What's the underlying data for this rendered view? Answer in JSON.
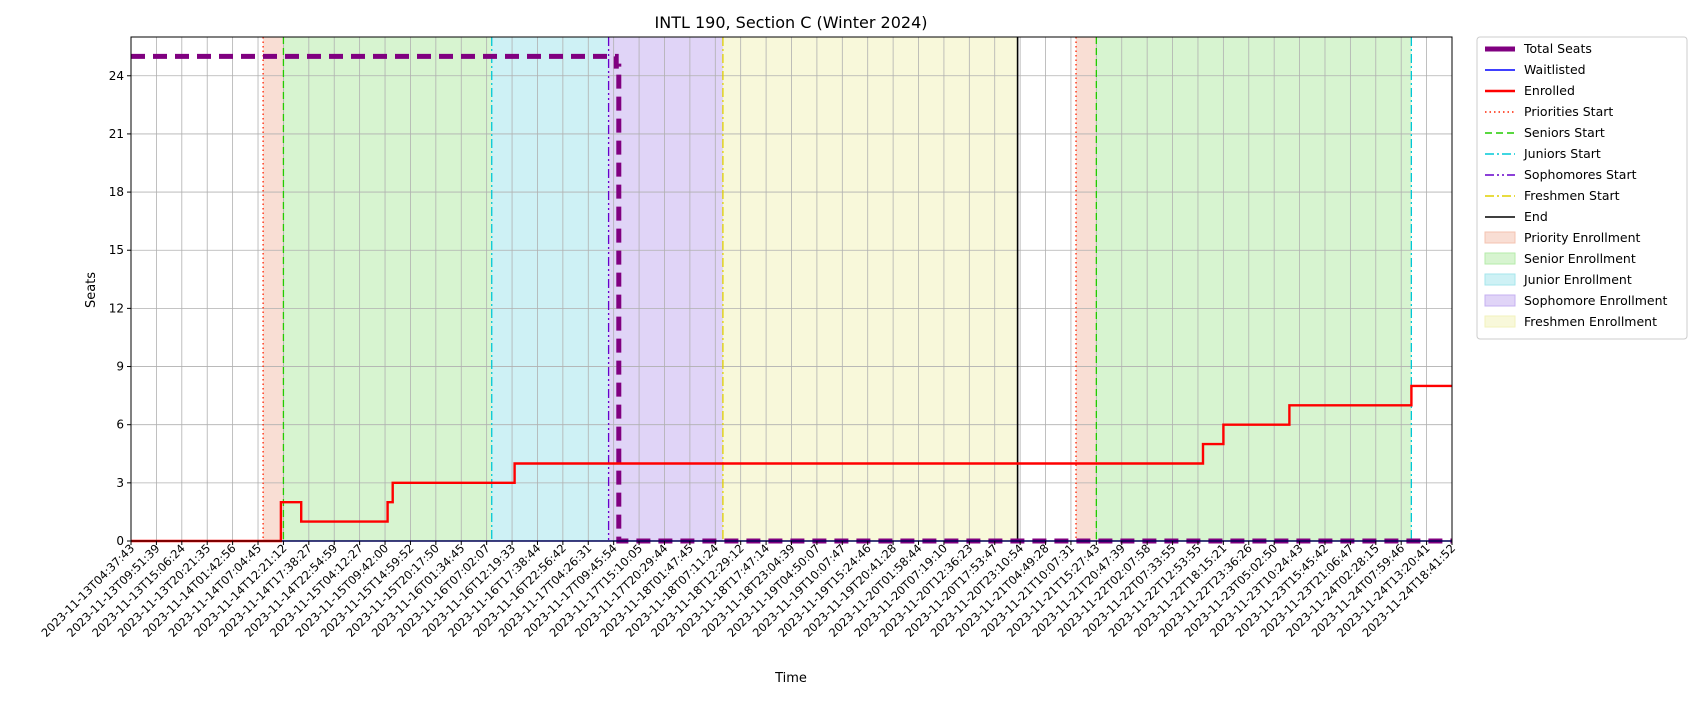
{
  "chart_data": {
    "type": "line",
    "title": "INTL 190, Section C (Winter 2024)",
    "xlabel": "Time",
    "ylabel": "Seats",
    "ylim": [
      0,
      26
    ],
    "yticks": [
      0,
      3,
      6,
      9,
      12,
      15,
      18,
      21,
      24
    ],
    "grid": true,
    "legend_position": "outside-right",
    "x_tick_labels": [
      "2023-11-13T04:37:43",
      "2023-11-13T09:51:39",
      "2023-11-13T15:06:24",
      "2023-11-13T20:21:35",
      "2023-11-14T01:42:56",
      "2023-11-14T07:04:45",
      "2023-11-14T12:21:12",
      "2023-11-14T17:38:27",
      "2023-11-14T22:54:59",
      "2023-11-15T04:12:27",
      "2023-11-15T09:42:00",
      "2023-11-15T14:59:52",
      "2023-11-15T20:17:50",
      "2023-11-16T01:34:45",
      "2023-11-16T07:02:07",
      "2023-11-16T12:19:33",
      "2023-11-16T17:38:44",
      "2023-11-16T22:56:42",
      "2023-11-17T04:26:31",
      "2023-11-17T09:45:54",
      "2023-11-17T15:10:05",
      "2023-11-17T20:29:44",
      "2023-11-18T01:47:45",
      "2023-11-18T07:11:24",
      "2023-11-18T12:29:12",
      "2023-11-18T17:47:14",
      "2023-11-18T23:04:39",
      "2023-11-19T04:50:07",
      "2023-11-19T10:07:47",
      "2023-11-19T15:24:46",
      "2023-11-19T20:41:28",
      "2023-11-20T01:58:44",
      "2023-11-20T07:19:10",
      "2023-11-20T12:36:23",
      "2023-11-20T17:53:47",
      "2023-11-20T23:10:54",
      "2023-11-21T04:49:28",
      "2023-11-21T10:07:31",
      "2023-11-21T15:27:43",
      "2023-11-21T20:47:39",
      "2023-11-22T02:07:58",
      "2023-11-22T07:33:55",
      "2023-11-22T12:53:55",
      "2023-11-22T18:15:21",
      "2023-11-22T23:36:26",
      "2023-11-23T05:02:50",
      "2023-11-23T10:24:43",
      "2023-11-23T15:45:42",
      "2023-11-23T21:06:47",
      "2023-11-24T02:28:15",
      "2023-11-24T07:59:46",
      "2023-11-24T13:20:41",
      "2023-11-24T18:41:52"
    ],
    "series": [
      {
        "name": "Total Seats",
        "color": "#800080",
        "style": "dashed-thick",
        "points": [
          [
            0,
            25
          ],
          [
            19.1,
            25
          ],
          [
            19.1,
            24.5
          ],
          [
            19.2,
            24.5
          ],
          [
            19.2,
            0
          ],
          [
            52,
            0
          ]
        ]
      },
      {
        "name": "Waitlisted",
        "color": "#0000ff",
        "style": "solid",
        "points": [
          [
            0,
            0
          ],
          [
            52,
            0
          ]
        ]
      },
      {
        "name": "Enrolled",
        "color": "#ff0000",
        "style": "solid",
        "points": [
          [
            0,
            0
          ],
          [
            5.9,
            0
          ],
          [
            5.9,
            2
          ],
          [
            6.7,
            2
          ],
          [
            6.7,
            1
          ],
          [
            10.1,
            1
          ],
          [
            10.1,
            2
          ],
          [
            10.3,
            2
          ],
          [
            10.3,
            3
          ],
          [
            15.1,
            3
          ],
          [
            15.1,
            4
          ],
          [
            42.2,
            4
          ],
          [
            42.2,
            5
          ],
          [
            43.0,
            5
          ],
          [
            43.0,
            6
          ],
          [
            45.6,
            6
          ],
          [
            45.6,
            7
          ],
          [
            50.4,
            7
          ],
          [
            50.4,
            8
          ],
          [
            52,
            8
          ]
        ]
      }
    ],
    "vertical_lines": [
      {
        "name": "Priorities Start",
        "color": "#ff2200",
        "style": "dotted",
        "x": [
          5.2,
          37.2
        ]
      },
      {
        "name": "Seniors Start",
        "color": "#22cc00",
        "style": "dashed",
        "x": [
          6.0,
          38.0
        ]
      },
      {
        "name": "Juniors Start",
        "color": "#00c8d7",
        "style": "dashdot",
        "x": [
          14.2,
          50.4
        ]
      },
      {
        "name": "Sophomores Start",
        "color": "#6600cc",
        "style": "dashdotdot",
        "x": [
          18.8
        ]
      },
      {
        "name": "Freshmen Start",
        "color": "#e0d000",
        "style": "dashdot",
        "x": [
          23.3
        ]
      },
      {
        "name": "End",
        "color": "#000000",
        "style": "solid",
        "x": [
          34.9
        ]
      }
    ],
    "shaded_regions": [
      {
        "name": "Priority Enrollment",
        "color": "#f4c3b0",
        "ranges": [
          [
            5.2,
            6.0
          ],
          [
            37.2,
            38.0
          ]
        ]
      },
      {
        "name": "Senior Enrollment",
        "color": "#b6ebaa",
        "ranges": [
          [
            6.0,
            14.2
          ],
          [
            38.0,
            50.4
          ]
        ]
      },
      {
        "name": "Junior Enrollment",
        "color": "#a6e6ec",
        "ranges": [
          [
            14.2,
            18.8
          ]
        ]
      },
      {
        "name": "Sophomore Enrollment",
        "color": "#c6b0f0",
        "ranges": [
          [
            18.8,
            23.3
          ]
        ]
      },
      {
        "name": "Freshmen Enrollment",
        "color": "#f2f2bc",
        "ranges": [
          [
            23.3,
            34.9
          ]
        ]
      }
    ],
    "legend": [
      {
        "label": "Total Seats",
        "kind": "line",
        "color": "#800080",
        "style": "thick"
      },
      {
        "label": "Waitlisted",
        "kind": "line",
        "color": "#0000ff",
        "style": "solid"
      },
      {
        "label": "Enrolled",
        "kind": "line",
        "color": "#ff0000",
        "style": "solid-bold"
      },
      {
        "label": "Priorities Start",
        "kind": "line",
        "color": "#ff2200",
        "style": "dotted"
      },
      {
        "label": "Seniors Start",
        "kind": "line",
        "color": "#22cc00",
        "style": "dashed"
      },
      {
        "label": "Juniors Start",
        "kind": "line",
        "color": "#00c8d7",
        "style": "dashdot"
      },
      {
        "label": "Sophomores Start",
        "kind": "line",
        "color": "#6600cc",
        "style": "dashdotdot"
      },
      {
        "label": "Freshmen Start",
        "kind": "line",
        "color": "#e0d000",
        "style": "dashdot"
      },
      {
        "label": "End",
        "kind": "line",
        "color": "#000000",
        "style": "solid"
      },
      {
        "label": "Priority Enrollment",
        "kind": "patch",
        "color": "#f4c3b0"
      },
      {
        "label": "Senior Enrollment",
        "kind": "patch",
        "color": "#b6ebaa"
      },
      {
        "label": "Junior Enrollment",
        "kind": "patch",
        "color": "#a6e6ec"
      },
      {
        "label": "Sophomore Enrollment",
        "kind": "patch",
        "color": "#c6b0f0"
      },
      {
        "label": "Freshmen Enrollment",
        "kind": "patch",
        "color": "#f2f2bc"
      }
    ]
  }
}
